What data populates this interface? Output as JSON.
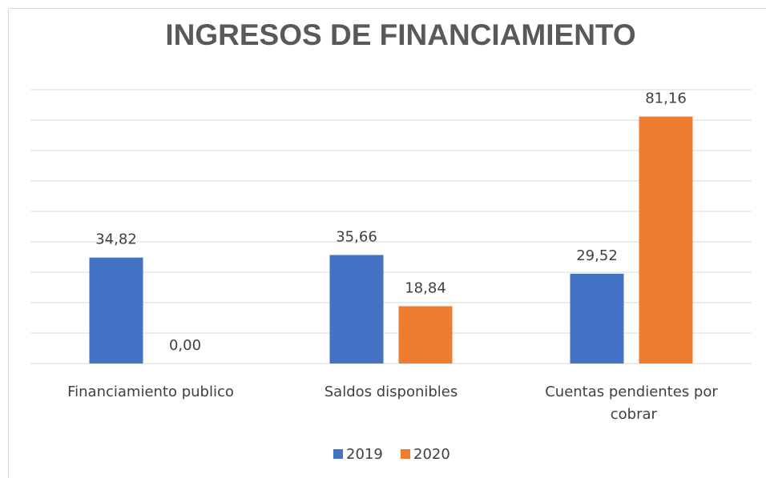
{
  "chart_data": {
    "type": "bar",
    "title": "INGRESOS DE FINANCIAMIENTO",
    "categories": [
      "Financiamiento publico",
      "Saldos disponibles",
      "Cuentas pendientes por cobrar"
    ],
    "series": [
      {
        "name": "2019",
        "color": "#4472c4",
        "values": [
          34.82,
          35.66,
          29.52
        ],
        "value_labels": [
          "34,82",
          "35,66",
          "29,52"
        ]
      },
      {
        "name": "2020",
        "color": "#ed7d31",
        "values": [
          0,
          18.84,
          81.16
        ],
        "value_labels": [
          "0,00",
          "18,84",
          "81,16"
        ]
      }
    ],
    "ylim": [
      0,
      90
    ],
    "yticks": [
      0,
      10,
      20,
      30,
      40,
      50,
      60,
      70,
      80,
      90
    ],
    "grid": true,
    "legend": "bottom"
  }
}
